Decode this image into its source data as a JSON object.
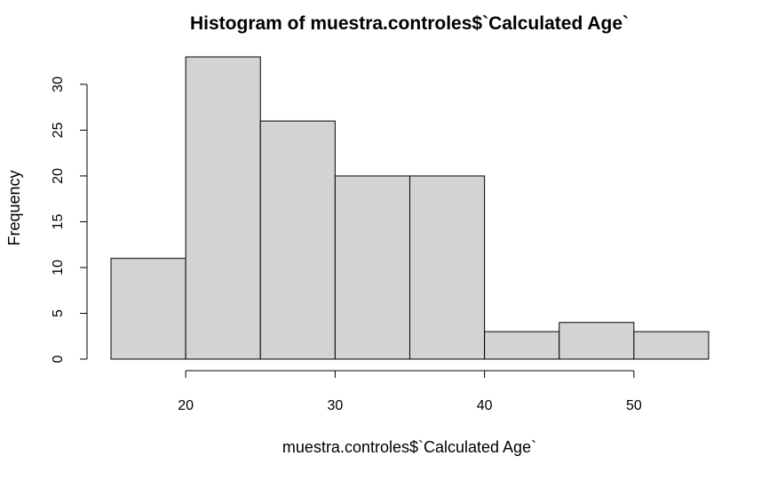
{
  "chart_data": {
    "type": "bar",
    "subtype": "histogram",
    "title": "Histogram of muestra.controles$`Calculated Age`",
    "xlabel": "muestra.controles$`Calculated Age`",
    "ylabel": "Frequency",
    "bin_edges": [
      15,
      20,
      25,
      30,
      35,
      40,
      45,
      50,
      55
    ],
    "values": [
      11,
      33,
      26,
      20,
      20,
      3,
      4,
      3
    ],
    "xlim": [
      15,
      55
    ],
    "ylim": [
      0,
      33
    ],
    "x_ticks": [
      20,
      30,
      40,
      50
    ],
    "y_ticks": [
      0,
      5,
      10,
      15,
      20,
      25,
      30
    ],
    "bar_color": "#d3d3d3",
    "grid": false,
    "legend": false
  }
}
